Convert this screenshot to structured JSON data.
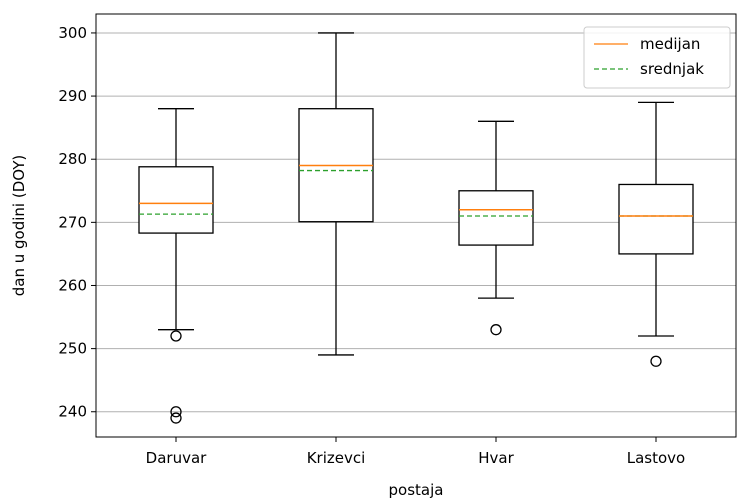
{
  "chart_data": {
    "type": "boxplot",
    "title": "",
    "xlabel": "postaja",
    "ylabel": "dan u godini (DOY)",
    "ylim": [
      236,
      303
    ],
    "yticks": [
      240,
      250,
      260,
      270,
      280,
      290,
      300
    ],
    "grid": "horizontal",
    "legend_position": "top-right",
    "legend": [
      {
        "label": "medijan",
        "style": "solid",
        "color": "#ff7f0e"
      },
      {
        "label": "srednjak",
        "style": "dashed",
        "color": "#2ca02c"
      }
    ],
    "categories": [
      "Daruvar",
      "Krizevci",
      "Hvar",
      "Lastovo"
    ],
    "boxes": [
      {
        "name": "Daruvar",
        "whislo": 253,
        "q1": 268.3,
        "median": 273,
        "q3": 278.8,
        "whishi": 288,
        "mean": 271.3,
        "fliers": [
          252,
          240,
          239
        ]
      },
      {
        "name": "Krizevci",
        "whislo": 249,
        "q1": 270.1,
        "median": 279,
        "q3": 288,
        "whishi": 300,
        "mean": 278.2,
        "fliers": []
      },
      {
        "name": "Hvar",
        "whislo": 258,
        "q1": 266.4,
        "median": 272,
        "q3": 275,
        "whishi": 286,
        "mean": 271,
        "fliers": [
          253
        ]
      },
      {
        "name": "Lastovo",
        "whislo": 252,
        "q1": 265,
        "median": 271,
        "q3": 276,
        "whishi": 289,
        "mean": 271,
        "fliers": [
          248
        ]
      }
    ],
    "colors": {
      "box": "#000000",
      "median": "#ff7f0e",
      "mean": "#2ca02c",
      "grid": "#b0b0b0"
    }
  }
}
